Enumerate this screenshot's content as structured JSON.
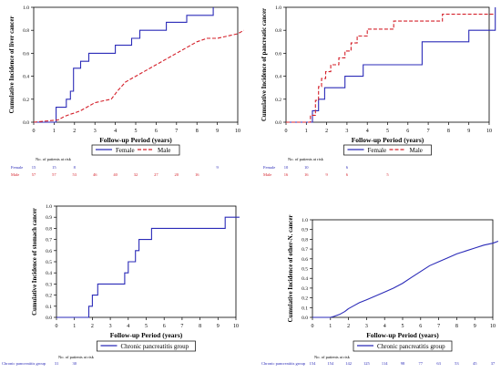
{
  "figure": {
    "panels": [
      {
        "id": "liver",
        "type": "line",
        "ylabel": "Cumulative Incidence of liver cancer",
        "xlabel": "Follow-up Period (years)",
        "xlim": [
          0,
          10
        ],
        "ylim": [
          0,
          1.0
        ],
        "xticks": [
          "0",
          "1",
          "2",
          "3",
          "4",
          "5",
          "6",
          "7",
          "8",
          "9",
          "10"
        ],
        "yticks": [
          "0.0",
          "0.2",
          "0.4",
          "0.6",
          "0.8",
          "1.0"
        ],
        "legend": [
          "Female",
          "Male"
        ],
        "risk_title": "No. of patients at risk",
        "series": [
          {
            "name": "Female",
            "color": "#2b2bb8",
            "style": "solid",
            "x": [
              0,
              1.1,
              1.1,
              1.6,
              1.6,
              1.8,
              1.8,
              1.95,
              1.95,
              2.3,
              2.3,
              2.7,
              2.7,
              4.0,
              4.0,
              4.8,
              4.8,
              5.2,
              5.2,
              6.5,
              6.5,
              7.5,
              7.5,
              8.8,
              8.8
            ],
            "y": [
              0,
              0,
              0.13,
              0.13,
              0.2,
              0.2,
              0.27,
              0.27,
              0.47,
              0.47,
              0.53,
              0.53,
              0.6,
              0.6,
              0.67,
              0.67,
              0.73,
              0.73,
              0.8,
              0.8,
              0.87,
              0.87,
              0.93,
              0.93,
              1.0
            ]
          },
          {
            "name": "Male",
            "color": "#d4202a",
            "style": "dashed",
            "x": [
              0,
              1.2,
              1.5,
              1.8,
              2.0,
              2.3,
              2.6,
              3.0,
              3.5,
              3.8,
              4.1,
              4.5,
              5.0,
              5.5,
              6.0,
              6.5,
              7.0,
              7.5,
              8.0,
              8.5,
              9.0,
              9.5,
              10.0,
              10.3
            ],
            "y": [
              0,
              0.02,
              0.05,
              0.07,
              0.08,
              0.1,
              0.13,
              0.17,
              0.19,
              0.2,
              0.27,
              0.35,
              0.4,
              0.45,
              0.5,
              0.55,
              0.6,
              0.65,
              0.7,
              0.73,
              0.73,
              0.75,
              0.77,
              0.8
            ]
          }
        ],
        "risk_rows": [
          {
            "label": "Female",
            "color": "#2b2bb8",
            "values": [
              {
                "x": 0,
                "v": "15"
              },
              {
                "x": 1,
                "v": "15"
              },
              {
                "x": 2,
                "v": "8"
              },
              {
                "x": 9,
                "v": "9"
              }
            ]
          },
          {
            "label": "Male",
            "color": "#d4202a",
            "values": [
              {
                "x": 0,
                "v": "57"
              },
              {
                "x": 1,
                "v": "57"
              },
              {
                "x": 2,
                "v": "53"
              },
              {
                "x": 3,
                "v": "46"
              },
              {
                "x": 4,
                "v": "40"
              },
              {
                "x": 5,
                "v": "32"
              },
              {
                "x": 6,
                "v": "27"
              },
              {
                "x": 7,
                "v": "20"
              },
              {
                "x": 8,
                "v": "16"
              }
            ]
          }
        ]
      },
      {
        "id": "pancreatic",
        "type": "line",
        "ylabel": "Cumulative Incidence of pancreatic cancer",
        "xlabel": "Follow-up Period (years)",
        "xlim": [
          0,
          10
        ],
        "ylim": [
          0,
          1.0
        ],
        "xticks": [
          "0",
          "1",
          "2",
          "3",
          "4",
          "5",
          "6",
          "7",
          "8",
          "9",
          "10"
        ],
        "yticks": [
          "0.0",
          "0.2",
          "0.4",
          "0.6",
          "0.8",
          "1.0"
        ],
        "legend": [
          "Female",
          "Male"
        ],
        "risk_title": "No. of patients at risk",
        "series": [
          {
            "name": "Female",
            "color": "#2b2bb8",
            "style": "solid",
            "x": [
              0,
              1.3,
              1.3,
              1.6,
              1.6,
              1.9,
              1.9,
              2.9,
              2.9,
              3.8,
              3.8,
              6.7,
              6.7,
              9.0,
              9.0,
              10.3,
              10.3
            ],
            "y": [
              0,
              0,
              0.1,
              0.1,
              0.2,
              0.2,
              0.3,
              0.3,
              0.4,
              0.4,
              0.5,
              0.5,
              0.7,
              0.7,
              0.8,
              0.8,
              1.0
            ]
          },
          {
            "name": "Male",
            "color": "#d4202a",
            "style": "dashed",
            "x": [
              0,
              1.2,
              1.2,
              1.45,
              1.45,
              1.6,
              1.6,
              1.75,
              1.75,
              1.95,
              1.95,
              2.2,
              2.2,
              2.6,
              2.6,
              2.9,
              2.9,
              3.2,
              3.2,
              3.5,
              3.5,
              3.8,
              3.8,
              4.0,
              4.0,
              4.3,
              4.3,
              5.3,
              5.3,
              7.7,
              7.7,
              10.3
            ],
            "y": [
              0,
              0,
              0.06,
              0.06,
              0.19,
              0.19,
              0.31,
              0.31,
              0.38,
              0.38,
              0.44,
              0.44,
              0.5,
              0.5,
              0.56,
              0.56,
              0.62,
              0.62,
              0.69,
              0.69,
              0.75,
              0.75,
              0.75,
              0.75,
              0.81,
              0.81,
              0.81,
              0.81,
              0.88,
              0.88,
              0.94,
              0.94
            ]
          }
        ],
        "risk_rows": [
          {
            "label": "Female",
            "color": "#2b2bb8",
            "values": [
              {
                "x": 0,
                "v": "10"
              },
              {
                "x": 1,
                "v": "10"
              },
              {
                "x": 3,
                "v": "6"
              }
            ]
          },
          {
            "label": "Male",
            "color": "#d4202a",
            "values": [
              {
                "x": 0,
                "v": "16"
              },
              {
                "x": 1,
                "v": "16"
              },
              {
                "x": 2,
                "v": "9"
              },
              {
                "x": 3,
                "v": "6"
              },
              {
                "x": 5,
                "v": "5"
              }
            ]
          }
        ]
      },
      {
        "id": "stomach",
        "type": "line",
        "ylabel": "Cumulative Incidence of stomach cancer",
        "xlabel": "Follow-up Period (years)",
        "xlim": [
          0,
          10
        ],
        "ylim": [
          0,
          1.0
        ],
        "xticks": [
          "0",
          "1",
          "2",
          "3",
          "4",
          "5",
          "6",
          "7",
          "8",
          "9",
          "10"
        ],
        "yticks": [
          "0.0",
          "0.1",
          "0.2",
          "0.3",
          "0.4",
          "0.5",
          "0.6",
          "0.7",
          "0.8",
          "0.9",
          "1.0"
        ],
        "legend": [
          "Chronic pancreatitis group"
        ],
        "risk_title": "No. of patients at risk",
        "series": [
          {
            "name": "Chronic pancreatitis group",
            "color": "#2b2bb8",
            "style": "solid",
            "x": [
              0,
              1.8,
              1.8,
              2.0,
              2.0,
              2.3,
              2.3,
              3.8,
              3.8,
              4.0,
              4.0,
              4.4,
              4.4,
              4.6,
              4.6,
              5.0,
              5.0,
              5.3,
              5.3,
              9.4,
              9.4,
              10.2
            ],
            "y": [
              0,
              0,
              0.1,
              0.1,
              0.2,
              0.2,
              0.3,
              0.3,
              0.4,
              0.4,
              0.5,
              0.5,
              0.6,
              0.6,
              0.7,
              0.7,
              0.7,
              0.7,
              0.8,
              0.8,
              0.9,
              0.9
            ]
          }
        ],
        "risk_rows": [
          {
            "label": "Chronic pancreatitis group",
            "color": "#2b2bb8",
            "values": [
              {
                "x": 0,
                "v": "31"
              },
              {
                "x": 1,
                "v": "30"
              }
            ]
          }
        ]
      },
      {
        "id": "other",
        "type": "line",
        "ylabel": "Cumulative Incidence of other-N. cancer",
        "xlabel": "Follow-up Period (years)",
        "xlim": [
          0,
          10
        ],
        "ylim": [
          0,
          1.0
        ],
        "xticks": [
          "0",
          "1",
          "2",
          "3",
          "4",
          "5",
          "6",
          "7",
          "8",
          "9",
          "10"
        ],
        "yticks": [
          "0.0",
          "0.1",
          "0.2",
          "0.3",
          "0.4",
          "0.5",
          "0.6",
          "0.7",
          "0.8",
          "0.9",
          "1.0"
        ],
        "legend": [
          "Chronic pancreatitis group"
        ],
        "risk_title": "No. of patients at risk",
        "series": [
          {
            "name": "Chronic pancreatitis group",
            "color": "#2b2bb8",
            "style": "solid",
            "x": [
              0,
              1.0,
              1.2,
              1.5,
              1.8,
              2.0,
              2.3,
              2.6,
              3.0,
              3.5,
              4.0,
              4.5,
              5.0,
              5.5,
              6.0,
              6.5,
              7.0,
              7.5,
              8.0,
              8.5,
              9.0,
              9.5,
              10.0,
              10.3
            ],
            "y": [
              0,
              0,
              0.01,
              0.03,
              0.06,
              0.09,
              0.12,
              0.15,
              0.18,
              0.22,
              0.26,
              0.3,
              0.35,
              0.41,
              0.47,
              0.53,
              0.57,
              0.61,
              0.65,
              0.68,
              0.71,
              0.74,
              0.76,
              0.78
            ]
          }
        ],
        "risk_rows": [
          {
            "label": "Chronic pancreatitis group",
            "color": "#2b2bb8",
            "values": [
              {
                "x": 0,
                "v": "154"
              },
              {
                "x": 1,
                "v": "154"
              },
              {
                "x": 2,
                "v": "142"
              },
              {
                "x": 3,
                "v": "125"
              },
              {
                "x": 4,
                "v": "114"
              },
              {
                "x": 5,
                "v": "98"
              },
              {
                "x": 6,
                "v": "77"
              },
              {
                "x": 7,
                "v": "63"
              },
              {
                "x": 8,
                "v": "53"
              },
              {
                "x": 9,
                "v": "45"
              },
              {
                "x": 10,
                "v": "37"
              }
            ]
          }
        ]
      }
    ]
  },
  "chart_data": [
    {
      "type": "line",
      "ylabel": "Cumulative Incidence of liver cancer",
      "xlabel": "Follow-up Period (years)",
      "xlim": [
        0,
        10
      ],
      "ylim": [
        0,
        1.0
      ],
      "grid": false,
      "legend_position": "bottom",
      "series": [
        {
          "name": "Female",
          "x": [
            0,
            1.1,
            1.6,
            1.8,
            1.95,
            2.3,
            2.7,
            4.0,
            4.8,
            5.2,
            6.5,
            7.5,
            8.8
          ],
          "y": [
            0,
            0.13,
            0.2,
            0.27,
            0.47,
            0.53,
            0.6,
            0.67,
            0.73,
            0.8,
            0.87,
            0.93,
            1.0
          ]
        },
        {
          "name": "Male",
          "x": [
            0,
            1.2,
            2.0,
            3.0,
            4.0,
            5.0,
            6.0,
            7.0,
            8.0,
            9.0,
            10.0
          ],
          "y": [
            0,
            0.02,
            0.08,
            0.17,
            0.25,
            0.4,
            0.5,
            0.6,
            0.7,
            0.73,
            0.77
          ]
        }
      ]
    },
    {
      "type": "line",
      "ylabel": "Cumulative Incidence of pancreatic cancer",
      "xlabel": "Follow-up Period (years)",
      "xlim": [
        0,
        10
      ],
      "ylim": [
        0,
        1.0
      ],
      "grid": false,
      "legend_position": "bottom",
      "series": [
        {
          "name": "Female",
          "x": [
            0,
            1.3,
            1.6,
            1.9,
            2.9,
            3.8,
            6.7,
            9.0,
            10.3
          ],
          "y": [
            0,
            0.1,
            0.2,
            0.3,
            0.4,
            0.5,
            0.7,
            0.8,
            1.0
          ]
        },
        {
          "name": "Male",
          "x": [
            0,
            1.2,
            1.45,
            1.6,
            1.75,
            1.95,
            2.2,
            2.6,
            2.9,
            3.2,
            3.5,
            4.0,
            5.3,
            7.7
          ],
          "y": [
            0,
            0.06,
            0.19,
            0.31,
            0.38,
            0.44,
            0.5,
            0.56,
            0.62,
            0.69,
            0.75,
            0.81,
            0.88,
            0.94
          ]
        }
      ]
    },
    {
      "type": "line",
      "ylabel": "Cumulative Incidence of stomach cancer",
      "xlabel": "Follow-up Period (years)",
      "xlim": [
        0,
        10
      ],
      "ylim": [
        0,
        1.0
      ],
      "grid": false,
      "legend_position": "bottom",
      "series": [
        {
          "name": "Chronic pancreatitis group",
          "x": [
            0,
            1.8,
            2.0,
            2.3,
            3.8,
            4.0,
            4.4,
            4.6,
            5.3,
            9.4
          ],
          "y": [
            0,
            0.1,
            0.2,
            0.3,
            0.4,
            0.5,
            0.6,
            0.7,
            0.8,
            0.9
          ]
        }
      ]
    },
    {
      "type": "line",
      "ylabel": "Cumulative Incidence of other-N. cancer",
      "xlabel": "Follow-up Period (years)",
      "xlim": [
        0,
        10
      ],
      "ylim": [
        0,
        1.0
      ],
      "grid": false,
      "legend_position": "bottom",
      "series": [
        {
          "name": "Chronic pancreatitis group",
          "x": [
            0,
            1,
            2,
            3,
            4,
            5,
            6,
            7,
            8,
            9,
            10
          ],
          "y": [
            0,
            0,
            0.09,
            0.18,
            0.26,
            0.35,
            0.47,
            0.57,
            0.65,
            0.71,
            0.76
          ]
        }
      ]
    }
  ]
}
